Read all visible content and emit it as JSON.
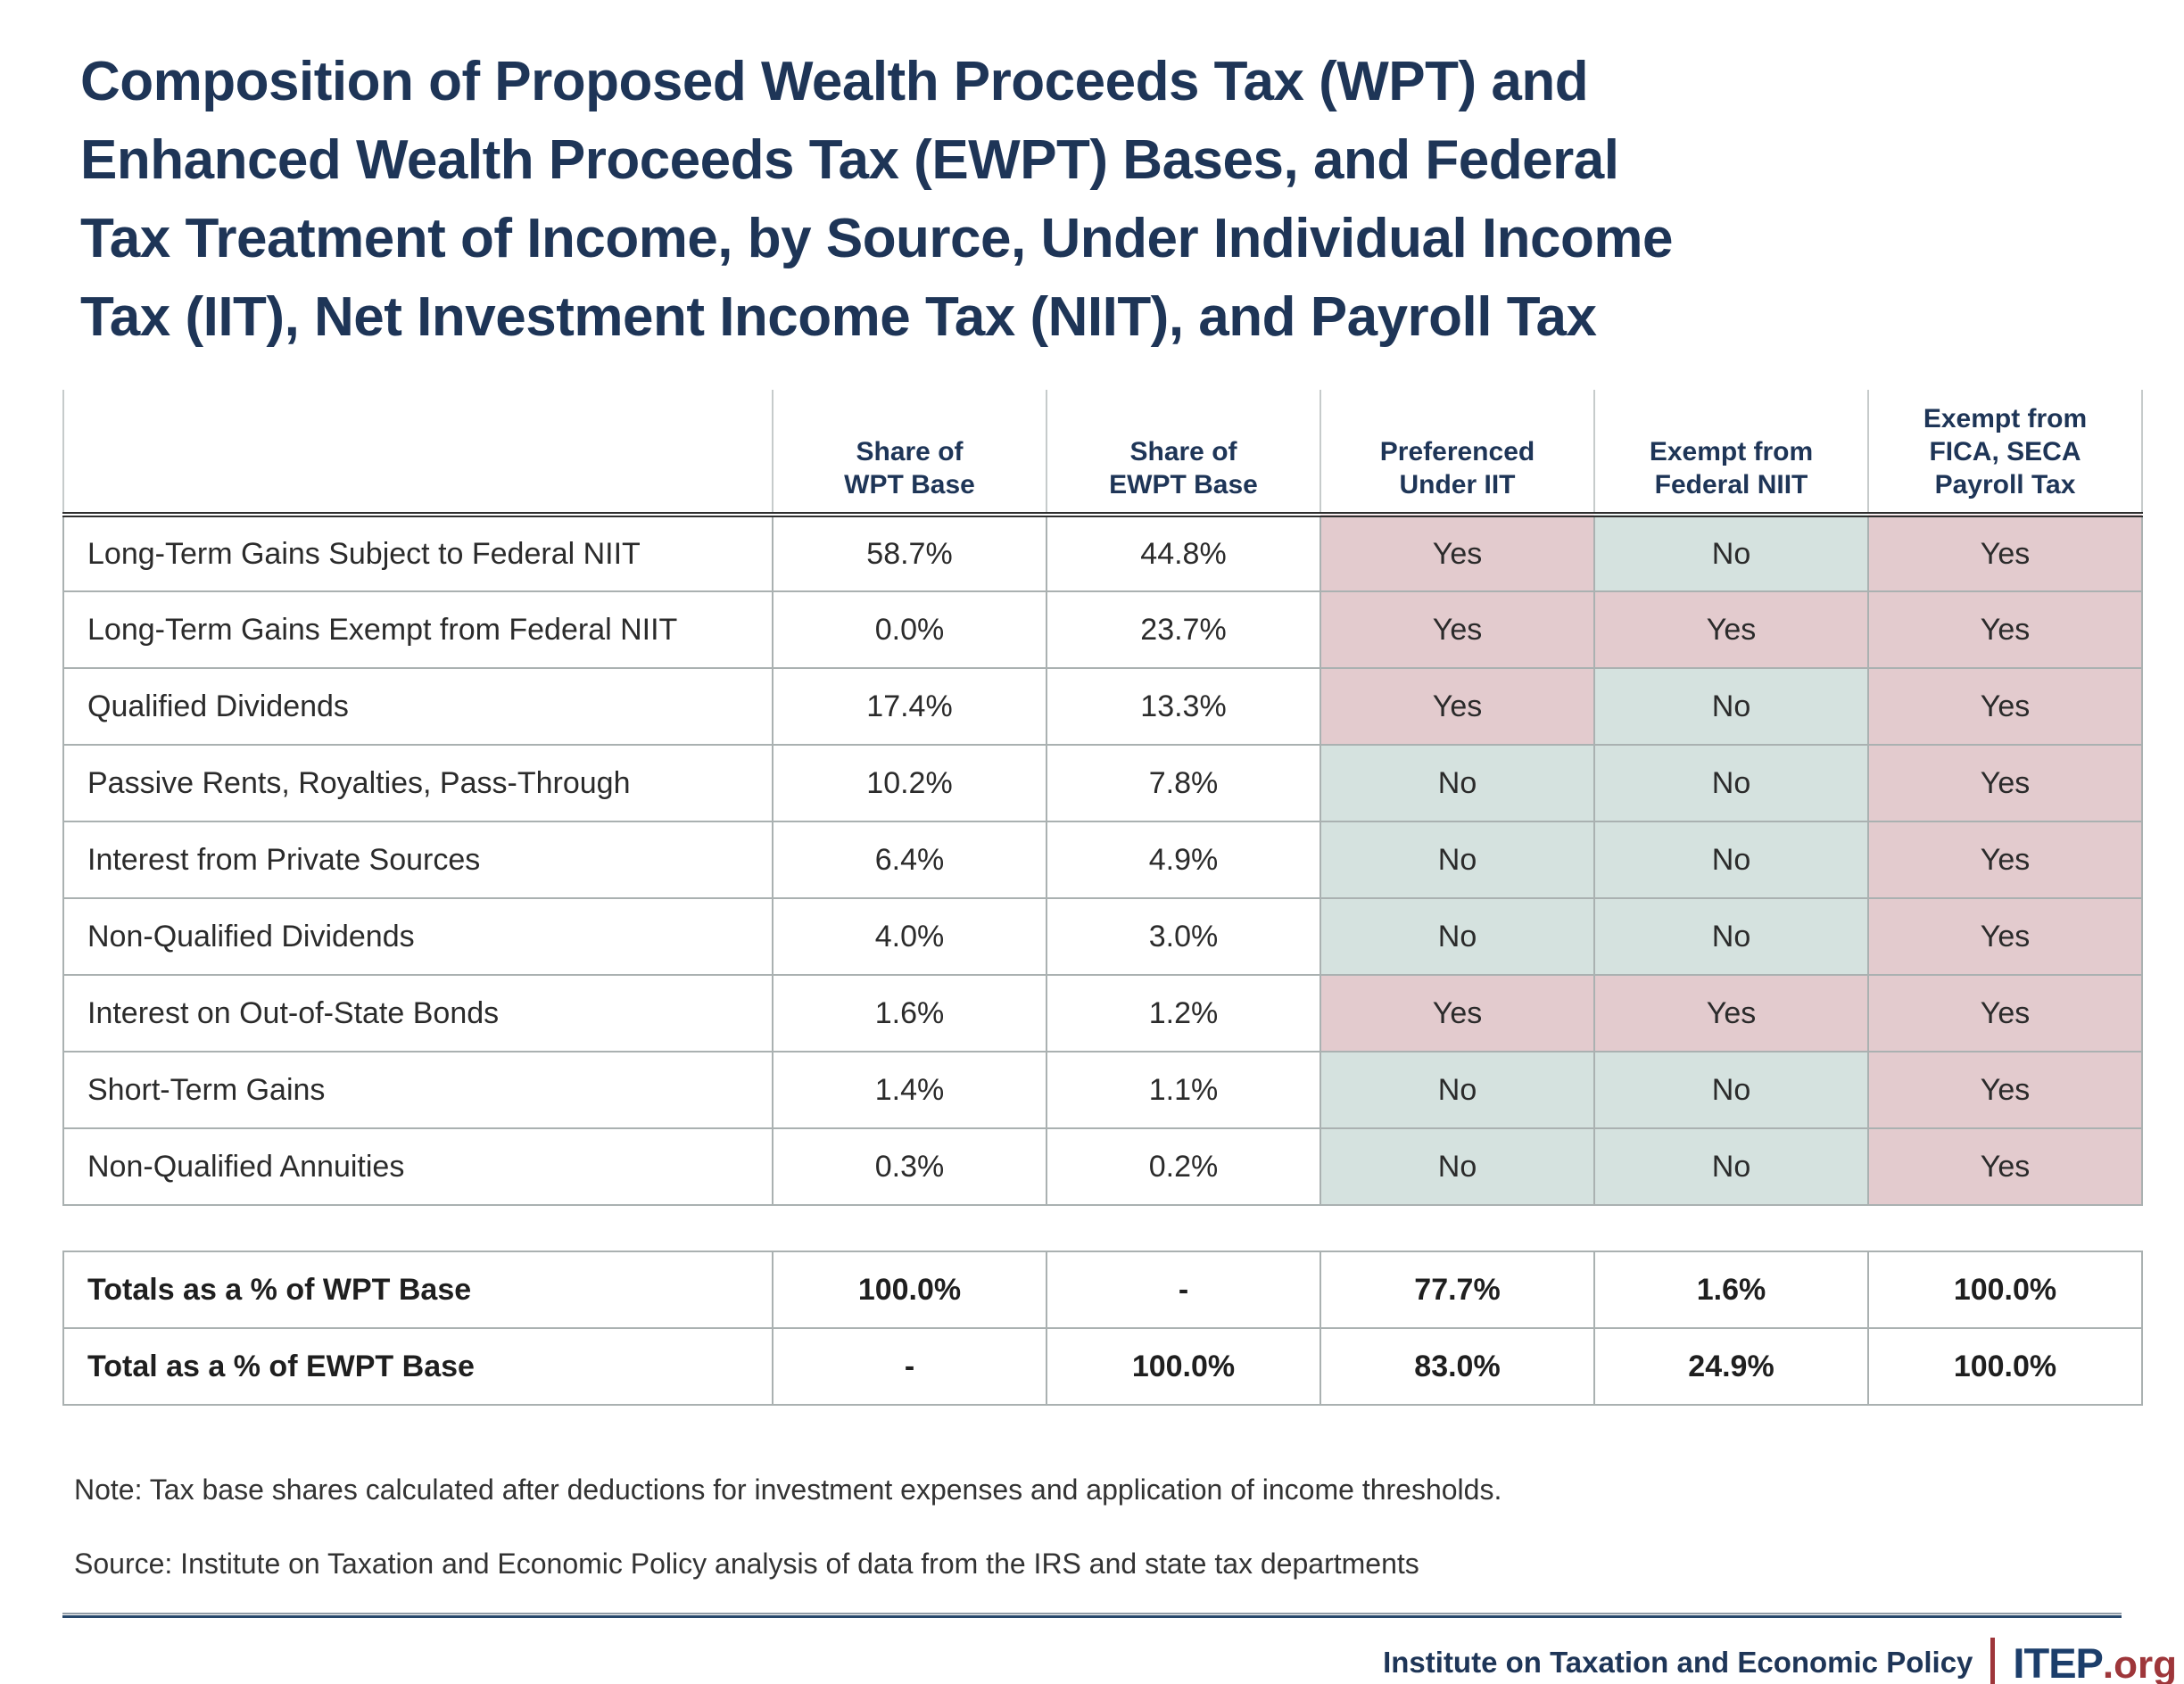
{
  "title_lines": [
    "Composition of Proposed Wealth Proceeds Tax (WPT) and",
    "Enhanced Wealth Proceeds Tax (EWPT) Bases, and Federal",
    "Tax Treatment of Income, by Source, Under Individual Income",
    "Tax (IIT), Net Investment Income Tax (NIIT), and Payroll Tax"
  ],
  "header_lines": [
    [
      "Share of",
      "WPT Base"
    ],
    [
      "Share of",
      "EWPT Base"
    ],
    [
      "Preferenced",
      "Under IIT"
    ],
    [
      "Exempt from",
      "Federal NIIT"
    ],
    [
      "Exempt from",
      "FICA, SECA",
      "Payroll Tax"
    ]
  ],
  "chart_data": {
    "type": "table",
    "title": "Composition of Proposed Wealth Proceeds Tax (WPT) and Enhanced Wealth Proceeds Tax (EWPT) Bases, and Federal Tax Treatment of Income, by Source, Under Individual Income Tax (IIT), Net Investment Income Tax (NIIT), and Payroll Tax",
    "columns": [
      "",
      "Share of WPT Base",
      "Share of EWPT Base",
      "Preferenced Under IIT",
      "Exempt from Federal NIIT",
      "Exempt from FICA, SECA Payroll Tax"
    ],
    "rows": [
      [
        "Long-Term Gains Subject to Federal NIIT",
        "58.7%",
        "44.8%",
        "Yes",
        "No",
        "Yes"
      ],
      [
        "Long-Term Gains Exempt from Federal NIIT",
        "0.0%",
        "23.7%",
        "Yes",
        "Yes",
        "Yes"
      ],
      [
        "Qualified Dividends",
        "17.4%",
        "13.3%",
        "Yes",
        "No",
        "Yes"
      ],
      [
        "Passive Rents, Royalties, Pass-Through",
        "10.2%",
        "7.8%",
        "No",
        "No",
        "Yes"
      ],
      [
        "Interest from Private Sources",
        "6.4%",
        "4.9%",
        "No",
        "No",
        "Yes"
      ],
      [
        "Non-Qualified Dividends",
        "4.0%",
        "3.0%",
        "No",
        "No",
        "Yes"
      ],
      [
        "Interest on Out-of-State Bonds",
        "1.6%",
        "1.2%",
        "Yes",
        "Yes",
        "Yes"
      ],
      [
        "Short-Term Gains",
        "1.4%",
        "1.1%",
        "No",
        "No",
        "Yes"
      ],
      [
        "Non-Qualified Annuities",
        "0.3%",
        "0.2%",
        "No",
        "No",
        "Yes"
      ]
    ],
    "totals": [
      [
        "Totals as a % of WPT Base",
        "100.0%",
        "-",
        "77.7%",
        "1.6%",
        "100.0%"
      ],
      [
        "Total as a % of EWPT Base",
        "-",
        "100.0%",
        "83.0%",
        "24.9%",
        "100.0%"
      ]
    ],
    "cell_color_legend": {
      "Yes": "#e3cbce",
      "No": "#d5e2df"
    },
    "grid": true,
    "legend_position": "none"
  },
  "footer": {
    "note": "Note: Tax base shares calculated after deductions for investment expenses and application of income thresholds.",
    "source": "Source: Institute on Taxation and Economic Policy analysis of data from the IRS and state tax departments",
    "org_name": "Institute on Taxation and Economic Policy",
    "logo_text": "ITEP",
    "logo_suffix": ".org"
  },
  "colors": {
    "navy": "#1e3557",
    "logo_navy": "#1c3e6b",
    "brand_red": "#9e363a",
    "yes_pink": "#e3cbce",
    "no_teal": "#d5e2df",
    "grid_line": "#aab1b1"
  }
}
